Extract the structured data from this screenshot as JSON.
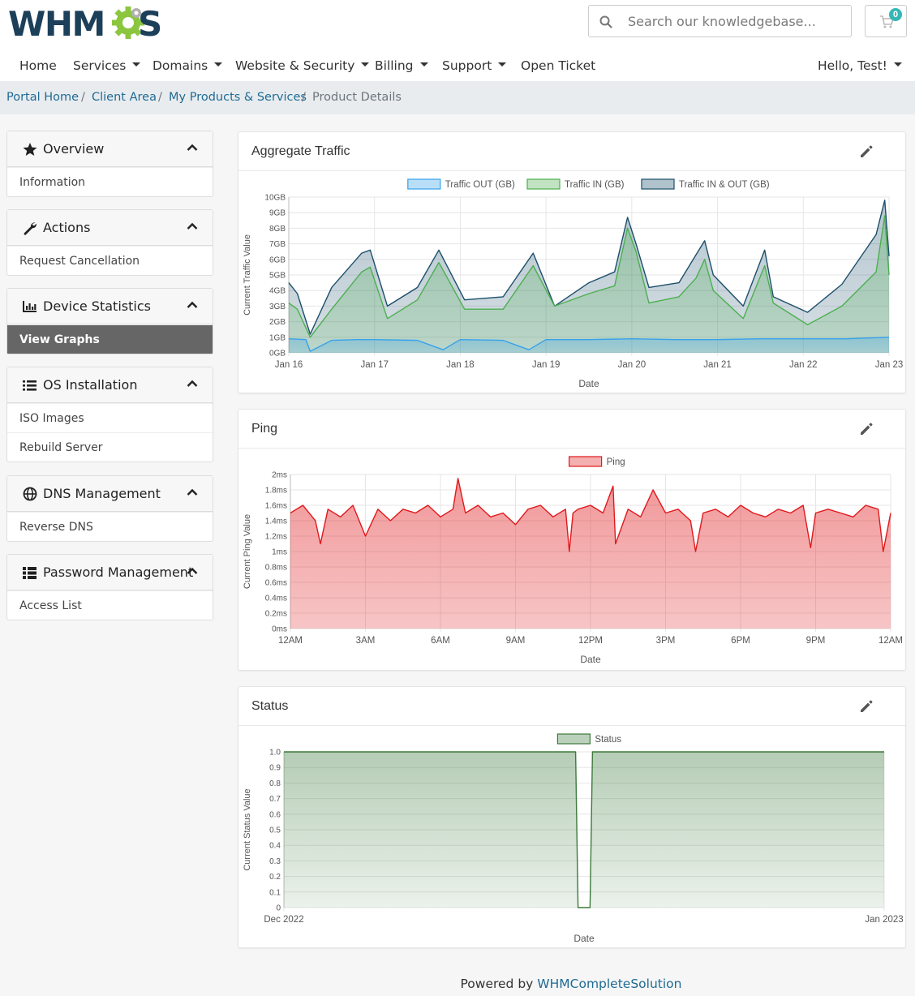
{
  "header": {
    "logo": "WHMCS",
    "search_placeholder": "Search our knowledgebase...",
    "cart_count": "0"
  },
  "nav": {
    "items": [
      "Home",
      "Services",
      "Domains",
      "Website & Security",
      "Billing",
      "Support",
      "Open Ticket"
    ],
    "user": "Hello, Test!"
  },
  "breadcrumb": {
    "items": [
      "Portal Home",
      "Client Area",
      "My Products & Services"
    ],
    "separator": "/",
    "active": "Product Details"
  },
  "sidebar": {
    "panels": [
      {
        "title": "Overview",
        "icon": "star-icon",
        "items": [
          "Information"
        ]
      },
      {
        "title": "Actions",
        "icon": "wrench-icon",
        "items": [
          "Request Cancellation"
        ]
      },
      {
        "title": "Device Statistics",
        "icon": "bar-chart-icon",
        "items": [
          "View Graphs"
        ],
        "active_item": "View Graphs"
      },
      {
        "title": "OS Installation",
        "icon": "list-icon",
        "items": [
          "ISO Images",
          "Rebuild Server"
        ]
      },
      {
        "title": "DNS Management",
        "icon": "globe-icon",
        "items": [
          "Reverse DNS"
        ]
      },
      {
        "title": "Password Management",
        "icon": "table-icon",
        "items": [
          "Access List"
        ]
      }
    ]
  },
  "colors": {
    "traffic_out": "#36a2eb",
    "traffic_in": "#4caf50",
    "traffic_total": "#1c4f6b",
    "ping": "#e0191c",
    "status": "#3d7a3d",
    "link": "#1f6b94",
    "active_item_bg": "#666666"
  },
  "chart_data": [
    {
      "type": "area",
      "title": "Aggregate Traffic",
      "xlabel": "Date",
      "ylabel": "Current Traffic Value",
      "x_ticks": [
        "Jan 16",
        "Jan 17",
        "Jan 18",
        "Jan 19",
        "Jan 20",
        "Jan 21",
        "Jan 22",
        "Jan 23"
      ],
      "y_ticks": [
        "0GB",
        "1GB",
        "2GB",
        "3GB",
        "4GB",
        "5GB",
        "6GB",
        "7GB",
        "8GB",
        "9GB",
        "10GB"
      ],
      "ylim": [
        0,
        10
      ],
      "legend_position": "top",
      "series": [
        {
          "name": "Traffic OUT (GB)",
          "x": [
            0,
            0.2,
            0.25,
            0.5,
            0.8,
            1,
            1.5,
            1.8,
            2,
            2.5,
            2.8,
            3,
            3.5,
            4,
            4.5,
            4.75,
            5,
            5.5,
            5.8,
            6,
            6.5,
            7
          ],
          "values": [
            0.9,
            0.85,
            0.1,
            0.8,
            0.85,
            0.85,
            0.8,
            0.2,
            0.85,
            0.8,
            0.2,
            0.85,
            0.85,
            0.9,
            0.85,
            0.85,
            0.85,
            0.9,
            0.9,
            0.9,
            0.9,
            1.0
          ]
        },
        {
          "name": "Traffic IN (GB)",
          "x": [
            0,
            0.1,
            0.25,
            0.5,
            0.85,
            0.95,
            1.15,
            1.5,
            1.75,
            2.05,
            2.5,
            2.85,
            3.1,
            3.5,
            3.8,
            3.95,
            4.05,
            4.2,
            4.55,
            4.75,
            4.85,
            4.95,
            5.3,
            5.55,
            5.65,
            6.05,
            6.45,
            6.85,
            6.95,
            7
          ],
          "values": [
            3.2,
            2.8,
            1.0,
            2.8,
            5.2,
            5.5,
            2.2,
            3.4,
            5.8,
            2.8,
            2.8,
            5.6,
            3.0,
            3.8,
            4.3,
            8.0,
            6.5,
            3.2,
            3.6,
            4.8,
            6.0,
            4.0,
            2.2,
            5.6,
            3.2,
            1.8,
            3.0,
            5.2,
            8.8,
            5.0
          ]
        },
        {
          "name": "Traffic IN & OUT (GB)",
          "x": [
            0,
            0.1,
            0.25,
            0.5,
            0.85,
            0.95,
            1.15,
            1.5,
            1.75,
            2.05,
            2.5,
            2.85,
            3.1,
            3.5,
            3.8,
            3.95,
            4.05,
            4.2,
            4.55,
            4.75,
            4.85,
            4.95,
            5.3,
            5.55,
            5.65,
            6.05,
            6.45,
            6.85,
            6.95,
            7
          ],
          "values": [
            4.5,
            3.8,
            1.2,
            4.2,
            6.4,
            6.6,
            3.0,
            4.2,
            6.6,
            3.4,
            3.6,
            6.4,
            3.0,
            4.5,
            5.2,
            8.7,
            7.0,
            4.2,
            4.5,
            6.3,
            7.2,
            5.0,
            3.0,
            6.6,
            3.6,
            2.6,
            4.4,
            7.6,
            9.8,
            6.2
          ]
        }
      ]
    },
    {
      "type": "area",
      "title": "Ping",
      "xlabel": "Date",
      "ylabel": "Current Ping Value",
      "x_ticks": [
        "12AM",
        "3AM",
        "6AM",
        "9AM",
        "12PM",
        "3PM",
        "6PM",
        "9PM",
        "12AM"
      ],
      "y_ticks": [
        "0ms",
        "0.2ms",
        "0.4ms",
        "0.6ms",
        "0.8ms",
        "1ms",
        "1.2ms",
        "1.4ms",
        "1.6ms",
        "1.8ms",
        "2ms"
      ],
      "ylim": [
        0,
        2
      ],
      "legend_position": "top",
      "series": [
        {
          "name": "Ping",
          "x": [
            0,
            0.5,
            1,
            1.2,
            1.5,
            2,
            2.5,
            3,
            3.5,
            4,
            4.5,
            5,
            5.5,
            6,
            6.5,
            6.7,
            7,
            7.5,
            8,
            8.5,
            9,
            9.5,
            10,
            10.5,
            11,
            11.15,
            11.3,
            11.5,
            12,
            12.5,
            12.9,
            13,
            13.5,
            14,
            14.5,
            15,
            15.5,
            16,
            16.2,
            16.5,
            17,
            17.5,
            18,
            18.5,
            19,
            19.5,
            20,
            20.5,
            20.8,
            21,
            21.5,
            22,
            22.5,
            23,
            23.5,
            23.7,
            24
          ],
          "values": [
            1.5,
            1.6,
            1.4,
            1.1,
            1.55,
            1.45,
            1.6,
            1.2,
            1.55,
            1.4,
            1.55,
            1.5,
            1.6,
            1.45,
            1.55,
            1.95,
            1.5,
            1.6,
            1.45,
            1.5,
            1.35,
            1.55,
            1.6,
            1.45,
            1.55,
            1.0,
            1.5,
            1.55,
            1.6,
            1.5,
            1.85,
            1.1,
            1.55,
            1.45,
            1.8,
            1.5,
            1.55,
            1.4,
            1.0,
            1.5,
            1.55,
            1.45,
            1.6,
            1.5,
            1.45,
            1.55,
            1.5,
            1.6,
            1.05,
            1.5,
            1.55,
            1.5,
            1.45,
            1.6,
            1.55,
            1.0,
            1.5
          ]
        }
      ]
    },
    {
      "type": "area",
      "title": "Status",
      "xlabel": "Date",
      "ylabel": "Current Status Value",
      "x_ticks": [
        "Dec 2022",
        "Jan 2023"
      ],
      "y_ticks": [
        "0",
        "0.1",
        "0.2",
        "0.3",
        "0.4",
        "0.5",
        "0.6",
        "0.7",
        "0.8",
        "0.9",
        "1.0"
      ],
      "ylim": [
        0,
        1
      ],
      "legend_position": "top",
      "series": [
        {
          "name": "Status",
          "x": [
            0,
            0.486,
            0.49,
            0.5,
            0.51,
            0.514,
            1
          ],
          "values": [
            1,
            1,
            0,
            0,
            0,
            1,
            1
          ]
        }
      ]
    }
  ],
  "footer": {
    "prefix": "Powered by",
    "link": "WHMCompleteSolution"
  }
}
